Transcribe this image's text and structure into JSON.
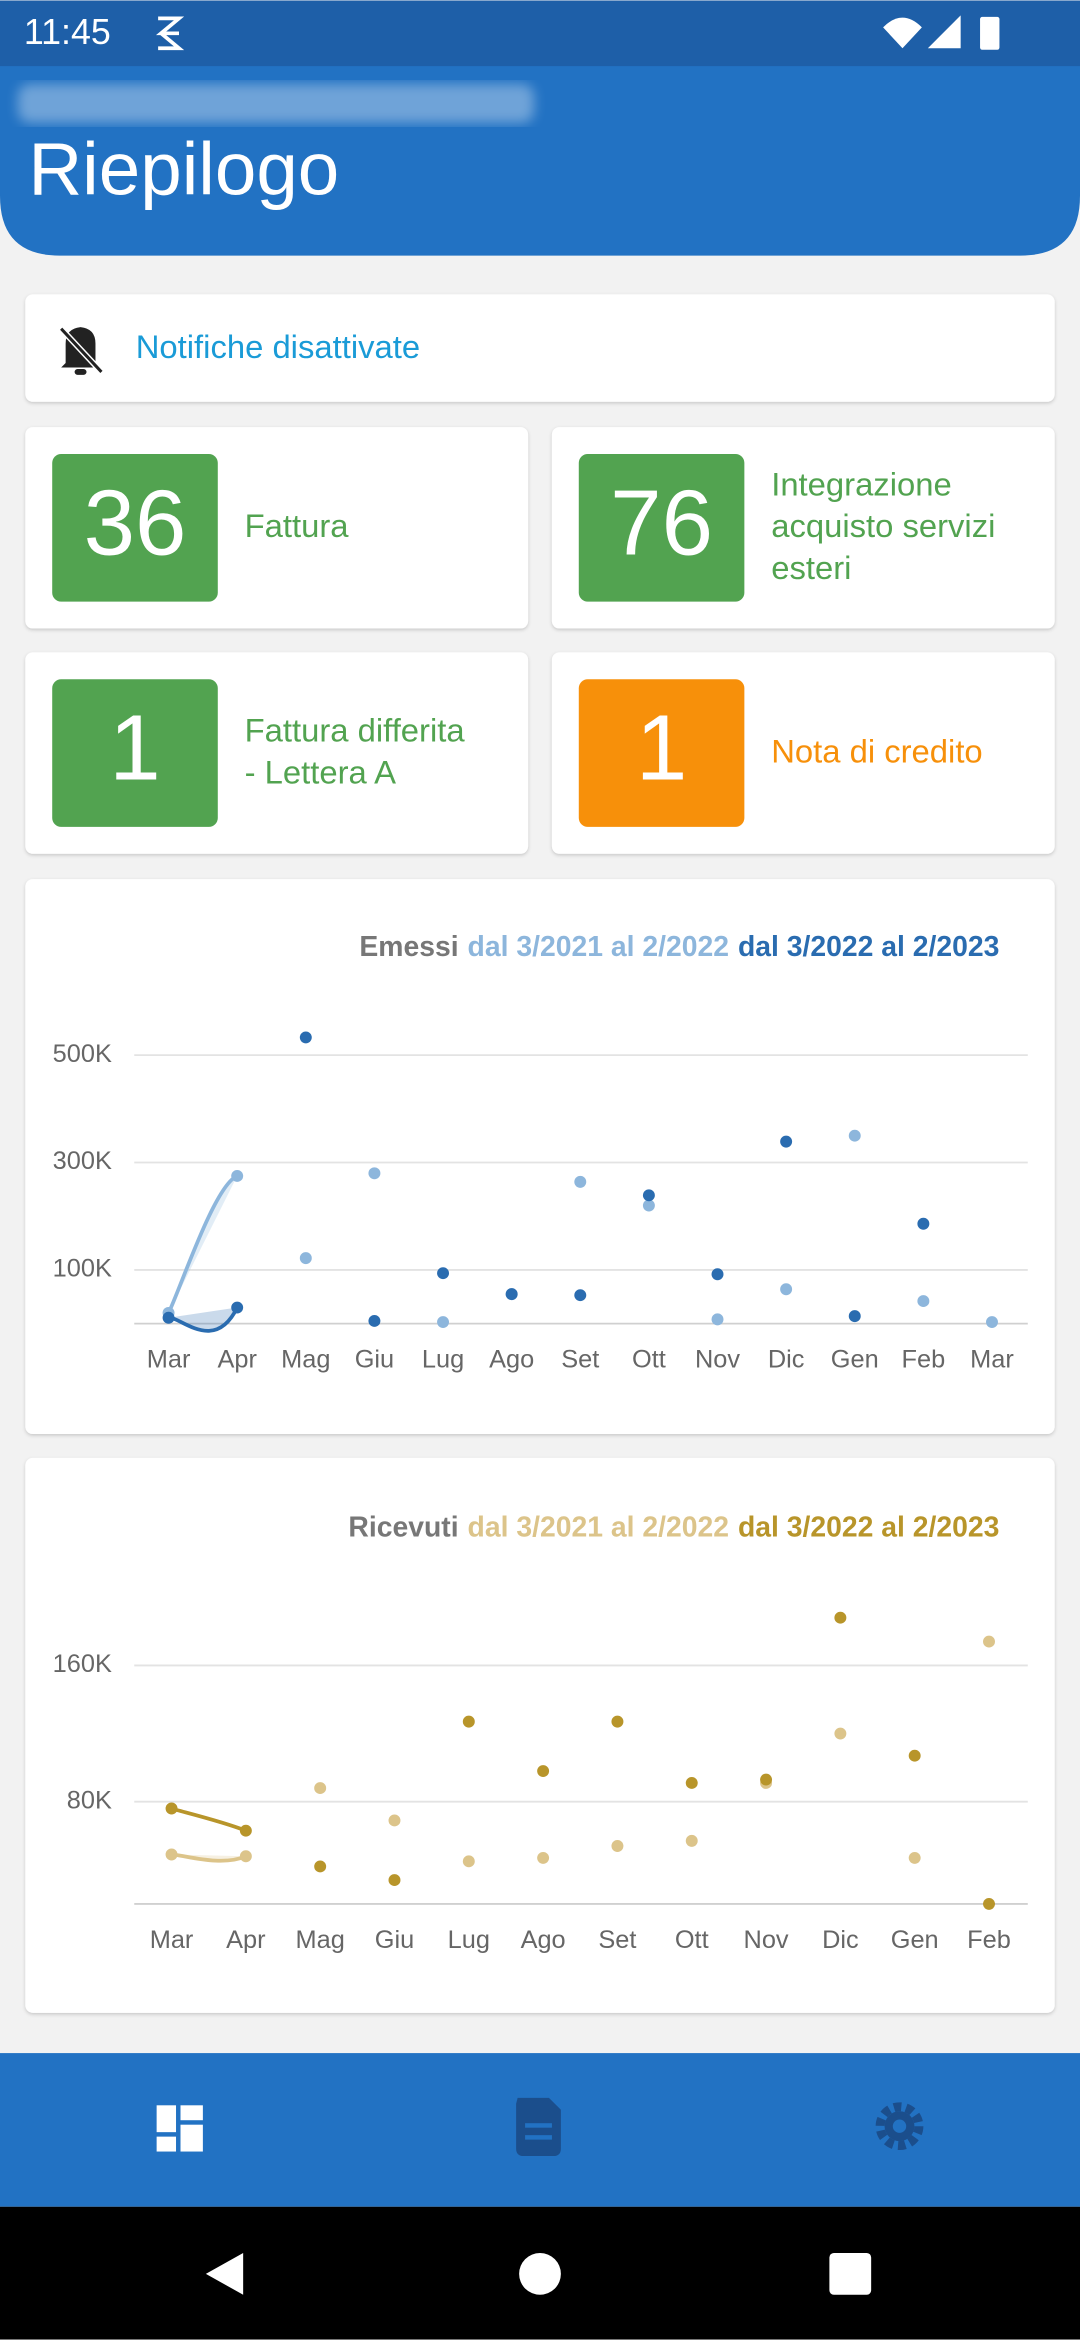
{
  "status_bar": {
    "time": "11:45"
  },
  "header": {
    "title": "Riepilogo"
  },
  "notification": "Notifiche disattivate",
  "tiles": [
    {
      "count": 36,
      "label": [
        "Fattura"
      ],
      "color": "#52a350"
    },
    {
      "count": 76,
      "label": [
        "Integrazione",
        "acquisto servizi",
        "esteri"
      ],
      "color": "#52a350"
    },
    {
      "count": 1,
      "label": [
        "Fattura differita",
        "- Lettera A"
      ],
      "color": "#52a350"
    },
    {
      "count": 1,
      "label": [
        "Nota di credito"
      ],
      "color": "#f7900a"
    }
  ],
  "chart_data": [
    {
      "type": "line",
      "title": "Emessi",
      "categories": [
        "Mar",
        "Apr",
        "Mag",
        "Giu",
        "Lug",
        "Ago",
        "Set",
        "Ott",
        "Nov",
        "Dic",
        "Gen",
        "Feb",
        "Mar"
      ],
      "series": [
        {
          "name": "dal 3/2021 al 2/2022",
          "color": "#8db6dc",
          "values": [
            20000,
            275000,
            122000,
            280000,
            3000,
            55000,
            264000,
            220000,
            8000,
            64000,
            350000,
            42000,
            3000
          ]
        },
        {
          "name": "dal 3/2022 al 2/2023",
          "color": "#2a6cb0",
          "values": [
            11000,
            30000,
            533000,
            5000,
            94000,
            55000,
            53000,
            239000,
            92000,
            339000,
            14000,
            186000,
            null
          ]
        }
      ],
      "ylim": [
        0,
        550000
      ],
      "yticks": [
        {
          "value": 100000,
          "label": "100K"
        },
        {
          "value": 300000,
          "label": "300K"
        },
        {
          "value": 500000,
          "label": "500K"
        }
      ],
      "grid": true
    },
    {
      "type": "line",
      "title": "Ricevuti",
      "categories": [
        "Mar",
        "Apr",
        "Mag",
        "Giu",
        "Lug",
        "Ago",
        "Set",
        "Ott",
        "Nov",
        "Dic",
        "Gen",
        "Feb"
      ],
      "series": [
        {
          "name": "dal 3/2021 al 2/2022",
          "color": "#dcc48a",
          "values": [
            49000,
            48000,
            88000,
            69000,
            45000,
            47000,
            54000,
            57000,
            91000,
            120000,
            47000,
            174000
          ]
        },
        {
          "name": "dal 3/2022 al 2/2023",
          "color": "#b8952a",
          "values": [
            76000,
            63000,
            42000,
            34000,
            127000,
            98000,
            127000,
            91000,
            93000,
            188000,
            107000,
            20000
          ]
        }
      ],
      "ylim": [
        20000,
        196000
      ],
      "yticks": [
        {
          "value": 80000,
          "label": "80K"
        },
        {
          "value": 160000,
          "label": "160K"
        }
      ],
      "grid": true
    }
  ]
}
